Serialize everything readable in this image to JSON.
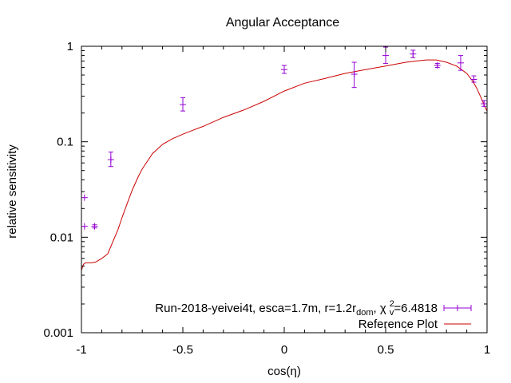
{
  "chart_data": {
    "type": "scatter",
    "title": "Angular Acceptance",
    "xlabel": "cos(η)",
    "ylabel": "relative sensitivity",
    "xscale": "linear",
    "yscale": "log",
    "xlim": [
      -1,
      1
    ],
    "ylim": [
      0.001,
      1
    ],
    "x_ticks": [
      -1,
      -0.5,
      0,
      0.5,
      1
    ],
    "x_tick_labels": [
      "-1",
      "-0.5",
      "0",
      "0.5",
      "1"
    ],
    "y_ticks": [
      0.001,
      0.01,
      0.1,
      1
    ],
    "y_tick_labels": [
      "0.001",
      "0.01",
      "0.1",
      "1"
    ],
    "grid": false,
    "legend_position": "bottom-right",
    "legend": {
      "data_label_parts": {
        "prefix": "Run-2018-yeivei4t, esca=1.7m, r=1.2r",
        "sub_dom": "dom",
        "mid": ", χ",
        "sup_2": "2",
        "sub_v": "v",
        "suffix": "=6.4818"
      },
      "reference_label": "Reference Plot"
    },
    "series": [
      {
        "name": "Run-2018-yeivei4t, esca=1.7m, r=1.2r dom, χ2 v=6.4818",
        "kind": "points-with-errorbars",
        "color": "#9400d3",
        "points": [
          {
            "x": -0.985,
            "y": 0.026,
            "ylo": 0.026,
            "yhi": 0.026
          },
          {
            "x": -0.985,
            "y": 0.013,
            "ylo": 0.013,
            "yhi": 0.013
          },
          {
            "x": -0.935,
            "y": 0.013,
            "ylo": 0.0125,
            "yhi": 0.0135
          },
          {
            "x": -0.855,
            "y": 0.065,
            "ylo": 0.055,
            "yhi": 0.078
          },
          {
            "x": -0.5,
            "y": 0.245,
            "ylo": 0.21,
            "yhi": 0.29
          },
          {
            "x": 0.0,
            "y": 0.57,
            "ylo": 0.52,
            "yhi": 0.63
          },
          {
            "x": 0.345,
            "y": 0.51,
            "ylo": 0.37,
            "yhi": 0.68
          },
          {
            "x": 0.5,
            "y": 0.8,
            "ylo": 0.66,
            "yhi": 0.98
          },
          {
            "x": 0.635,
            "y": 0.83,
            "ylo": 0.76,
            "yhi": 0.91
          },
          {
            "x": 0.755,
            "y": 0.63,
            "ylo": 0.6,
            "yhi": 0.66
          },
          {
            "x": 0.87,
            "y": 0.67,
            "ylo": 0.56,
            "yhi": 0.8
          },
          {
            "x": 0.935,
            "y": 0.45,
            "ylo": 0.42,
            "yhi": 0.49
          },
          {
            "x": 0.985,
            "y": 0.25,
            "ylo": 0.235,
            "yhi": 0.27
          }
        ]
      },
      {
        "name": "Reference Plot",
        "kind": "line",
        "color": "#cc0000",
        "x": [
          -1.0,
          -0.99,
          -0.98,
          -0.95,
          -0.93,
          -0.9,
          -0.87,
          -0.85,
          -0.82,
          -0.8,
          -0.78,
          -0.75,
          -0.72,
          -0.7,
          -0.65,
          -0.6,
          -0.55,
          -0.5,
          -0.45,
          -0.4,
          -0.3,
          -0.2,
          -0.1,
          0.0,
          0.1,
          0.2,
          0.3,
          0.4,
          0.5,
          0.6,
          0.65,
          0.7,
          0.75,
          0.8,
          0.85,
          0.9,
          0.93,
          0.95,
          0.97,
          0.99,
          1.0
        ],
        "y": [
          0.0045,
          0.0052,
          0.0054,
          0.0054,
          0.0055,
          0.006,
          0.0067,
          0.0085,
          0.012,
          0.016,
          0.021,
          0.031,
          0.043,
          0.052,
          0.075,
          0.094,
          0.108,
          0.12,
          0.132,
          0.145,
          0.18,
          0.215,
          0.265,
          0.34,
          0.41,
          0.46,
          0.52,
          0.57,
          0.62,
          0.68,
          0.7,
          0.72,
          0.72,
          0.68,
          0.62,
          0.52,
          0.43,
          0.36,
          0.29,
          0.23,
          0.21
        ]
      }
    ]
  }
}
